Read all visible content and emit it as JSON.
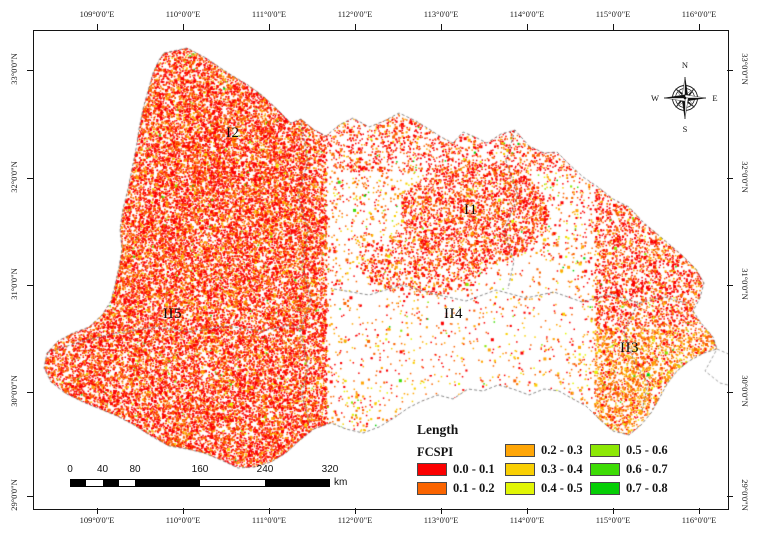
{
  "axes": {
    "top": [
      "109°0'0\"E",
      "110°0'0\"E",
      "111°0'0\"E",
      "112°0'0\"E",
      "113°0'0\"E",
      "114°0'0\"E",
      "115°0'0\"E",
      "116°0'0\"E"
    ],
    "bottom": [
      "109°0'0\"E",
      "110°0'0\"E",
      "111°0'0\"E",
      "112°0'0\"E",
      "113°0'0\"E",
      "114°0'0\"E",
      "115°0'0\"E",
      "116°0'0\"E"
    ],
    "left": [
      "33°0'0\"N",
      "32°0'0\"N",
      "31°0'0\"N",
      "30°0'0\"N",
      "29°0'0\"N"
    ],
    "right": [
      "33°0'0\"N",
      "32°0'0\"N",
      "31°0'0\"N",
      "30°0'0\"N",
      "29°0'0\"N"
    ]
  },
  "regions": {
    "i2": "I2",
    "i1": "I1",
    "ii5": "II5",
    "ii4": "II4",
    "ii3": "II3"
  },
  "compass": {
    "north": "N",
    "east": "E",
    "south": "S",
    "west": "W"
  },
  "scalebar": {
    "ticks": [
      "0",
      "40",
      "80",
      "160",
      "240",
      "320"
    ],
    "unit": "km"
  },
  "legend": {
    "title": "Length",
    "field": "FCSPI",
    "items": [
      {
        "label": "0.0 - 0.1",
        "color": "#FB0000"
      },
      {
        "label": "0.1 - 0.2",
        "color": "#FA6400"
      },
      {
        "label": "0.2 - 0.3",
        "color": "#FFA607"
      },
      {
        "label": "0.3 - 0.4",
        "color": "#F9CF03"
      },
      {
        "label": "0.4 - 0.5",
        "color": "#E1F505"
      },
      {
        "label": "0.5 - 0.6",
        "color": "#8DE805"
      },
      {
        "label": "0.6 - 0.7",
        "color": "#3EDC05"
      },
      {
        "label": "0.7 - 0.8",
        "color": "#05CE05"
      }
    ]
  },
  "map_colors": {
    "boundary": "#7c7c7c"
  }
}
